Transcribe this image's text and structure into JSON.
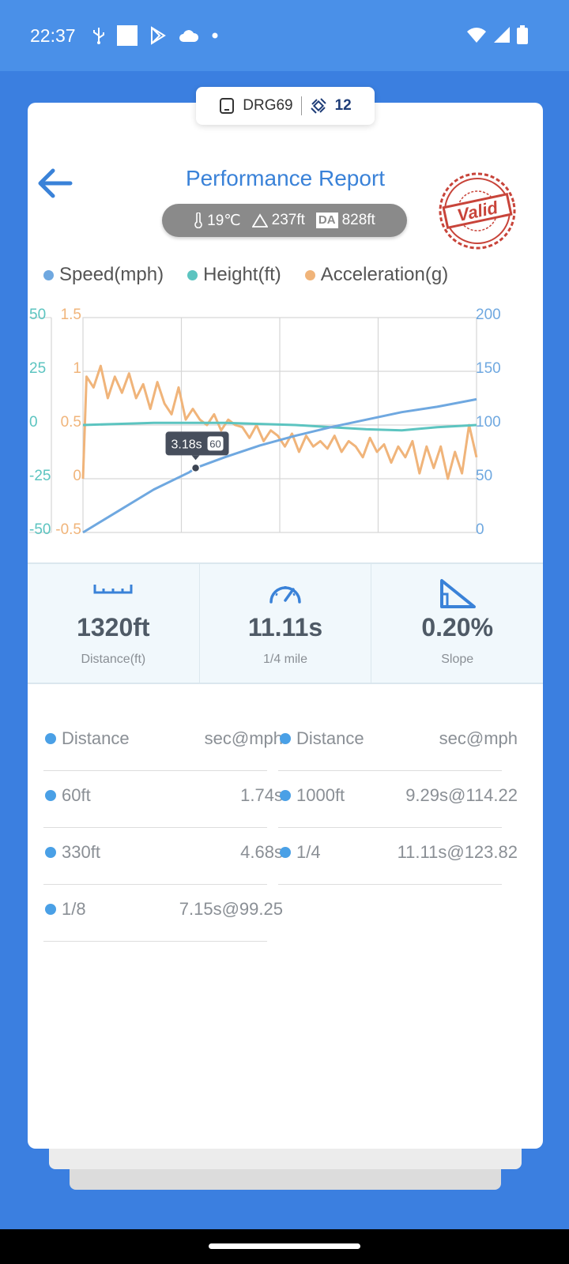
{
  "status_bar": {
    "time": "22:37",
    "icons": [
      "usb-icon",
      "square-icon",
      "play-store-icon",
      "cloud-icon",
      "dot-icon"
    ],
    "right_icons": [
      "wifi-icon",
      "signal-icon",
      "battery-icon"
    ]
  },
  "device": {
    "name": "DRG69",
    "satellite_count": "12"
  },
  "header": {
    "title": "Performance Report",
    "conditions": {
      "temperature": "19℃",
      "altitude": "237ft",
      "da_label": "DA",
      "density_altitude": "828ft"
    },
    "stamp_text": "Valid"
  },
  "legend": [
    {
      "label": "Speed(mph)",
      "color": "#6fa8e0"
    },
    {
      "label": "Height(ft)",
      "color": "#5cc4c0"
    },
    {
      "label": "Acceleration(g)",
      "color": "#f0b47a"
    }
  ],
  "chart_data": {
    "type": "line",
    "tooltip": {
      "time": "3.18s",
      "badge": "60"
    },
    "axes": {
      "height_left": {
        "ticks": [
          "50",
          "25",
          "0",
          "-25",
          "-50"
        ],
        "range": [
          -50,
          50
        ],
        "color": "#5cc4c0"
      },
      "acceleration_left": {
        "ticks": [
          "1.5",
          "1",
          "0.5",
          "0",
          "-0.5"
        ],
        "range": [
          -0.5,
          1.5
        ],
        "color": "#f0b47a"
      },
      "speed_right": {
        "ticks": [
          "200",
          "150",
          "100",
          "50",
          "0"
        ],
        "range": [
          0,
          200
        ],
        "color": "#6fa8e0"
      }
    },
    "x_range_s": [
      0,
      11.11
    ],
    "series": [
      {
        "name": "Speed(mph)",
        "color": "#6fa8e0",
        "x": [
          0,
          1,
          2,
          3,
          3.18,
          4,
          5,
          6,
          7,
          8,
          9,
          10,
          11.11
        ],
        "values": [
          0,
          20,
          40,
          56,
          60,
          70,
          81,
          90,
          98,
          105,
          112,
          117,
          124
        ]
      },
      {
        "name": "Height(ft)",
        "color": "#5cc4c0",
        "x": [
          0,
          1,
          2,
          3,
          4,
          5,
          6,
          7,
          8,
          9,
          10,
          11.11
        ],
        "values": [
          0,
          0.5,
          1,
          1,
          1,
          0.5,
          0,
          -1,
          -2,
          -2.5,
          -1,
          0
        ]
      },
      {
        "name": "Acceleration(g)",
        "color": "#f0b47a",
        "x": [
          0,
          0.1,
          0.3,
          0.5,
          0.7,
          0.9,
          1.1,
          1.3,
          1.5,
          1.7,
          1.9,
          2.1,
          2.3,
          2.5,
          2.7,
          2.9,
          3.1,
          3.3,
          3.5,
          3.7,
          3.9,
          4.1,
          4.3,
          4.5,
          4.7,
          4.9,
          5.1,
          5.3,
          5.5,
          5.7,
          5.9,
          6.1,
          6.3,
          6.5,
          6.7,
          6.9,
          7.1,
          7.3,
          7.5,
          7.7,
          7.9,
          8.1,
          8.3,
          8.5,
          8.7,
          8.9,
          9.1,
          9.3,
          9.5,
          9.7,
          9.9,
          10.1,
          10.3,
          10.5,
          10.7,
          10.9,
          11.11
        ],
        "values": [
          0,
          0.95,
          0.85,
          1.05,
          0.75,
          0.95,
          0.8,
          0.98,
          0.75,
          0.88,
          0.65,
          0.9,
          0.7,
          0.6,
          0.85,
          0.55,
          0.65,
          0.55,
          0.5,
          0.6,
          0.45,
          0.55,
          0.5,
          0.48,
          0.38,
          0.5,
          0.35,
          0.45,
          0.4,
          0.3,
          0.42,
          0.25,
          0.4,
          0.3,
          0.35,
          0.28,
          0.4,
          0.25,
          0.35,
          0.3,
          0.2,
          0.38,
          0.25,
          0.32,
          0.15,
          0.3,
          0.2,
          0.35,
          0.05,
          0.3,
          0.1,
          0.3,
          0.0,
          0.25,
          0.05,
          0.5,
          0.2
        ]
      }
    ]
  },
  "stats": [
    {
      "icon": "ruler-icon",
      "value": "1320ft",
      "label": "Distance(ft)"
    },
    {
      "icon": "speedometer-icon",
      "value": "11.11s",
      "label": "1/4 mile"
    },
    {
      "icon": "slope-icon",
      "value": "0.20%",
      "label": "Slope"
    }
  ],
  "splits": {
    "headers": {
      "distance": "Distance",
      "value": "sec@mph"
    },
    "left": [
      {
        "distance": "60ft",
        "value": "1.74s"
      },
      {
        "distance": "330ft",
        "value": "4.68s"
      },
      {
        "distance": "1/8",
        "value": "7.15s@99.25"
      }
    ],
    "right": [
      {
        "distance": "1000ft",
        "value": "9.29s@114.22"
      },
      {
        "distance": "1/4",
        "value": "11.11s@123.82"
      }
    ]
  }
}
